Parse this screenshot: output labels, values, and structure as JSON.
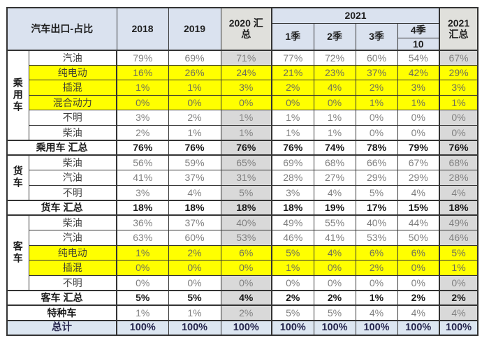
{
  "chart_data": {
    "type": "table",
    "title": "汽车出口-占比",
    "header": {
      "y2018": "2018",
      "y2019": "2019",
      "t2020": "2020 汇总",
      "g2021": "2021",
      "q1": "1季",
      "q2": "2季",
      "q3": "3季",
      "q4": "4季",
      "q4_month": "10",
      "t2021": "2021 汇总"
    },
    "columns": [
      "2018",
      "2019",
      "2020 汇总",
      "2021 1季",
      "2021 2季",
      "2021 3季",
      "2021 4季 (10)",
      "2021 汇总"
    ],
    "rows": [
      {
        "section": "乘用车",
        "section_start": true,
        "section_span": 6,
        "label": "汽油",
        "values": [
          "79%",
          "69%",
          "71%",
          "77%",
          "72%",
          "60%",
          "54%",
          "67%"
        ]
      },
      {
        "label": "纯电动",
        "highlight": true,
        "values": [
          "16%",
          "26%",
          "24%",
          "21%",
          "23%",
          "37%",
          "42%",
          "29%"
        ]
      },
      {
        "label": "插混",
        "highlight": true,
        "values": [
          "1%",
          "1%",
          "3%",
          "2%",
          "4%",
          "2%",
          "3%",
          "3%"
        ]
      },
      {
        "label": "混合动力",
        "highlight": true,
        "values": [
          "0%",
          "0%",
          "0%",
          "0%",
          "0%",
          "1%",
          "1%",
          "1%"
        ]
      },
      {
        "label": "不明",
        "values": [
          "3%",
          "2%",
          "1%",
          "1%",
          "1%",
          "0%",
          "0%",
          "0%"
        ]
      },
      {
        "label": "柴油",
        "values": [
          "2%",
          "1%",
          "1%",
          "1%",
          "1%",
          "0%",
          "0%",
          "0%"
        ]
      },
      {
        "label": "乘用车 汇总",
        "kind": "summary",
        "values": [
          "76%",
          "76%",
          "76%",
          "76%",
          "74%",
          "78%",
          "79%",
          "76%"
        ]
      },
      {
        "section": "货车",
        "section_start": true,
        "section_span": 3,
        "label": "柴油",
        "values": [
          "56%",
          "59%",
          "65%",
          "69%",
          "68%",
          "66%",
          "67%",
          "68%"
        ]
      },
      {
        "label": "汽油",
        "values": [
          "41%",
          "37%",
          "31%",
          "28%",
          "27%",
          "29%",
          "29%",
          "28%"
        ]
      },
      {
        "label": "不明",
        "values": [
          "3%",
          "4%",
          "5%",
          "3%",
          "4%",
          "5%",
          "4%",
          "4%"
        ]
      },
      {
        "label": "货车 汇总",
        "kind": "summary",
        "values": [
          "18%",
          "18%",
          "18%",
          "18%",
          "19%",
          "17%",
          "15%",
          "18%"
        ]
      },
      {
        "section": "客车",
        "section_start": true,
        "section_span": 5,
        "label": "柴油",
        "values": [
          "36%",
          "37%",
          "40%",
          "49%",
          "55%",
          "40%",
          "44%",
          "49%"
        ]
      },
      {
        "label": "汽油",
        "values": [
          "63%",
          "60%",
          "53%",
          "46%",
          "41%",
          "53%",
          "50%",
          "46%"
        ]
      },
      {
        "label": "纯电动",
        "highlight": true,
        "values": [
          "1%",
          "2%",
          "6%",
          "5%",
          "4%",
          "6%",
          "6%",
          "5%"
        ]
      },
      {
        "label": "插混",
        "highlight": true,
        "values": [
          "0%",
          "0%",
          "0%",
          "1%",
          "0%",
          "2%",
          "0%",
          "1%"
        ]
      },
      {
        "label": "不明",
        "values": [
          "0%",
          "0%",
          "0%",
          "0%",
          "0%",
          "0%",
          "0%",
          "0%"
        ]
      },
      {
        "label": "客车 汇总",
        "kind": "summary",
        "values": [
          "5%",
          "5%",
          "4%",
          "2%",
          "2%",
          "1%",
          "2%",
          "2%"
        ]
      },
      {
        "label": "特种车",
        "kind": "special",
        "values": [
          "1%",
          "1%",
          "2%",
          "5%",
          "5%",
          "4%",
          "4%",
          "4%"
        ]
      },
      {
        "label": "总计",
        "kind": "total",
        "values": [
          "100%",
          "100%",
          "100%",
          "100%",
          "100%",
          "100%",
          "100%",
          "100%"
        ]
      }
    ],
    "colors": {
      "header_blue": "#dae2ef",
      "summary_header_gray": "#e0e0dc",
      "summary_column_gray": "#d9d9d9",
      "highlight_yellow": "#ffff00",
      "total_row_blue": "#dce6f1",
      "border": "#333333"
    }
  }
}
